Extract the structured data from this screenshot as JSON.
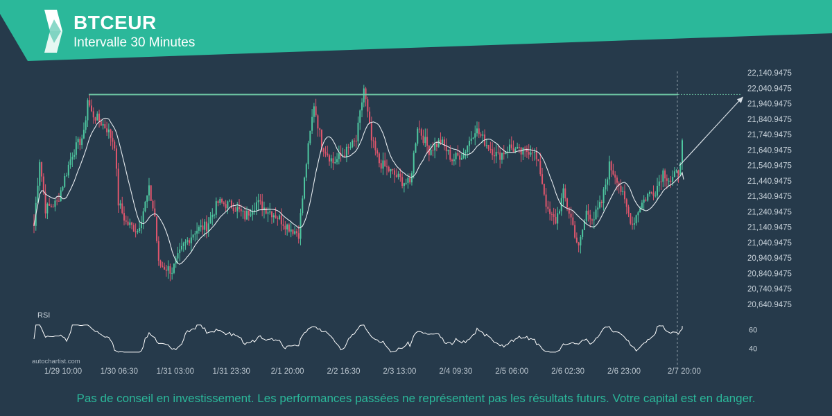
{
  "header": {
    "title": "BTCEUR",
    "subtitle": "Intervalle 30 Minutes",
    "banner_color": "#2bb89a"
  },
  "watermark": "autochartist.com",
  "disclaimer": "Pas de conseil en investissement. Les performances passées ne représentent pas les résultats futurs. Votre capital est en danger.",
  "chart_data": {
    "type": "candlestick",
    "symbol": "BTCEUR",
    "y_ticks": [
      "22,140.9475",
      "22,040.9475",
      "21,940.9475",
      "21,840.9475",
      "21,740.9475",
      "21,640.9475",
      "21,540.9475",
      "21,440.9475",
      "21,340.9475",
      "21,240.9475",
      "21,140.9475",
      "21,040.9475",
      "20,940.9475",
      "20,840.9475",
      "20,740.9475",
      "20,640.9475"
    ],
    "ylim": [
      20640.9475,
      22140.9475
    ],
    "x_ticks": [
      "1/29 10:00",
      "1/30 06:30",
      "1/31 03:00",
      "1/31 23:30",
      "2/1 20:00",
      "2/2 16:30",
      "2/3 13:00",
      "2/4 09:30",
      "2/5 06:00",
      "2/6 02:30",
      "2/6 23:00",
      "2/7 20:00"
    ],
    "resistance_level": 22000,
    "forecast_target": 22000,
    "price_keypoints": [
      [
        0,
        21150
      ],
      [
        3,
        21580
      ],
      [
        6,
        21260
      ],
      [
        12,
        21300
      ],
      [
        20,
        21620
      ],
      [
        26,
        21740
      ],
      [
        28,
        21970
      ],
      [
        30,
        21880
      ],
      [
        38,
        21780
      ],
      [
        42,
        21680
      ],
      [
        44,
        21300
      ],
      [
        48,
        21170
      ],
      [
        54,
        21120
      ],
      [
        60,
        21380
      ],
      [
        63,
        21210
      ],
      [
        65,
        20900
      ],
      [
        72,
        20860
      ],
      [
        78,
        21020
      ],
      [
        84,
        21120
      ],
      [
        90,
        21150
      ],
      [
        96,
        21300
      ],
      [
        104,
        21280
      ],
      [
        110,
        21210
      ],
      [
        116,
        21300
      ],
      [
        126,
        21220
      ],
      [
        132,
        21150
      ],
      [
        138,
        21100
      ],
      [
        142,
        21560
      ],
      [
        146,
        21940
      ],
      [
        150,
        21680
      ],
      [
        156,
        21560
      ],
      [
        162,
        21620
      ],
      [
        168,
        21700
      ],
      [
        172,
        22040
      ],
      [
        176,
        21700
      ],
      [
        180,
        21560
      ],
      [
        186,
        21500
      ],
      [
        192,
        21440
      ],
      [
        196,
        21420
      ],
      [
        200,
        21800
      ],
      [
        206,
        21640
      ],
      [
        212,
        21700
      ],
      [
        218,
        21580
      ],
      [
        224,
        21620
      ],
      [
        230,
        21780
      ],
      [
        236,
        21680
      ],
      [
        242,
        21600
      ],
      [
        248,
        21660
      ],
      [
        254,
        21620
      ],
      [
        260,
        21650
      ],
      [
        264,
        21500
      ],
      [
        268,
        21230
      ],
      [
        272,
        21180
      ],
      [
        276,
        21360
      ],
      [
        280,
        21200
      ],
      [
        284,
        21000
      ],
      [
        288,
        21240
      ],
      [
        292,
        21200
      ],
      [
        296,
        21300
      ],
      [
        300,
        21540
      ],
      [
        304,
        21460
      ],
      [
        308,
        21300
      ],
      [
        312,
        21160
      ],
      [
        316,
        21280
      ],
      [
        320,
        21350
      ],
      [
        324,
        21380
      ],
      [
        328,
        21500
      ],
      [
        332,
        21440
      ],
      [
        336,
        21500
      ],
      [
        338,
        21680
      ]
    ],
    "moving_average": true,
    "rsi": {
      "label": "RSI",
      "ticks": [
        60,
        40
      ],
      "ylim": [
        30,
        70
      ]
    }
  }
}
